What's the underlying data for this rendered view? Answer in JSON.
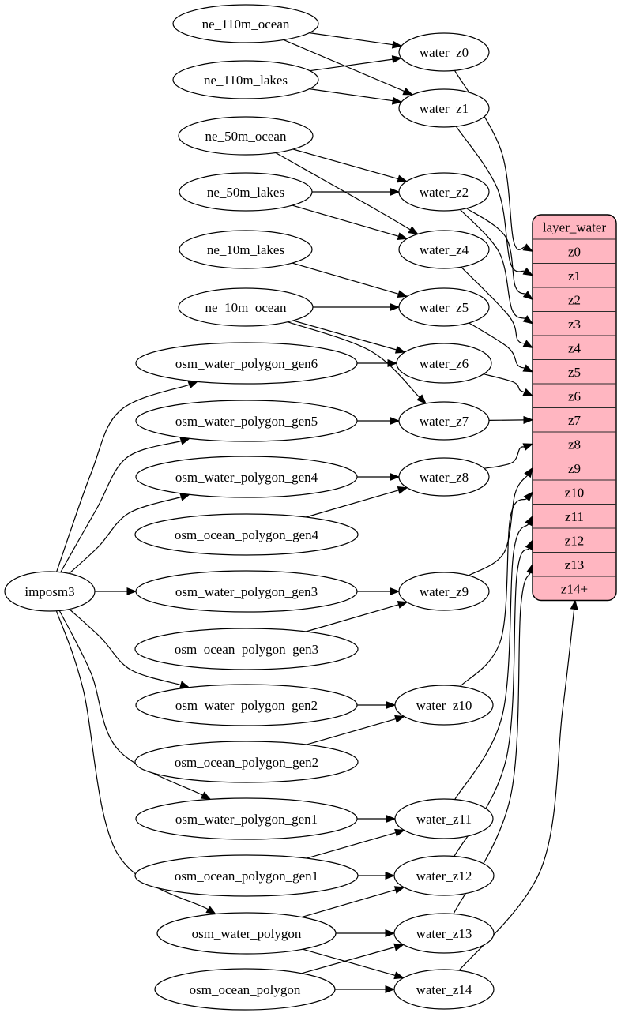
{
  "diagram": {
    "background": "#ffffff",
    "colors": {
      "node_fill": "#ffffff",
      "stroke": "#000000",
      "text": "#000000",
      "table_fill": "#ffb6c1"
    },
    "table": {
      "title": "layer_water",
      "rows": [
        "z0",
        "z1",
        "z2",
        "z3",
        "z4",
        "z5",
        "z6",
        "z7",
        "z8",
        "z9",
        "z10",
        "z11",
        "z12",
        "z13",
        "z14+"
      ]
    },
    "nodes": [
      {
        "id": "imposm3",
        "label": "imposm3"
      },
      {
        "id": "ne_110m_ocean",
        "label": "ne_110m_ocean"
      },
      {
        "id": "ne_110m_lakes",
        "label": "ne_110m_lakes"
      },
      {
        "id": "ne_50m_ocean",
        "label": "ne_50m_ocean"
      },
      {
        "id": "ne_50m_lakes",
        "label": "ne_50m_lakes"
      },
      {
        "id": "ne_10m_lakes",
        "label": "ne_10m_lakes"
      },
      {
        "id": "ne_10m_ocean",
        "label": "ne_10m_ocean"
      },
      {
        "id": "osm_water_polygon_gen6",
        "label": "osm_water_polygon_gen6"
      },
      {
        "id": "osm_water_polygon_gen5",
        "label": "osm_water_polygon_gen5"
      },
      {
        "id": "osm_water_polygon_gen4",
        "label": "osm_water_polygon_gen4"
      },
      {
        "id": "osm_ocean_polygon_gen4",
        "label": "osm_ocean_polygon_gen4"
      },
      {
        "id": "osm_water_polygon_gen3",
        "label": "osm_water_polygon_gen3"
      },
      {
        "id": "osm_ocean_polygon_gen3",
        "label": "osm_ocean_polygon_gen3"
      },
      {
        "id": "osm_water_polygon_gen2",
        "label": "osm_water_polygon_gen2"
      },
      {
        "id": "osm_ocean_polygon_gen2",
        "label": "osm_ocean_polygon_gen2"
      },
      {
        "id": "osm_water_polygon_gen1",
        "label": "osm_water_polygon_gen1"
      },
      {
        "id": "osm_ocean_polygon_gen1",
        "label": "osm_ocean_polygon_gen1"
      },
      {
        "id": "osm_water_polygon",
        "label": "osm_water_polygon"
      },
      {
        "id": "osm_ocean_polygon",
        "label": "osm_ocean_polygon"
      },
      {
        "id": "water_z0",
        "label": "water_z0"
      },
      {
        "id": "water_z1",
        "label": "water_z1"
      },
      {
        "id": "water_z2",
        "label": "water_z2"
      },
      {
        "id": "water_z4",
        "label": "water_z4"
      },
      {
        "id": "water_z5",
        "label": "water_z5"
      },
      {
        "id": "water_z6",
        "label": "water_z6"
      },
      {
        "id": "water_z7",
        "label": "water_z7"
      },
      {
        "id": "water_z8",
        "label": "water_z8"
      },
      {
        "id": "water_z9",
        "label": "water_z9"
      },
      {
        "id": "water_z10",
        "label": "water_z10"
      },
      {
        "id": "water_z11",
        "label": "water_z11"
      },
      {
        "id": "water_z12",
        "label": "water_z12"
      },
      {
        "id": "water_z13",
        "label": "water_z13"
      },
      {
        "id": "water_z14",
        "label": "water_z14"
      }
    ],
    "edges": [
      {
        "from": "ne_110m_ocean",
        "to": "water_z0"
      },
      {
        "from": "ne_110m_ocean",
        "to": "water_z1"
      },
      {
        "from": "ne_110m_lakes",
        "to": "water_z0"
      },
      {
        "from": "ne_110m_lakes",
        "to": "water_z1"
      },
      {
        "from": "ne_50m_ocean",
        "to": "water_z2"
      },
      {
        "from": "ne_50m_ocean",
        "to": "water_z4"
      },
      {
        "from": "ne_50m_lakes",
        "to": "water_z2"
      },
      {
        "from": "ne_50m_lakes",
        "to": "water_z4"
      },
      {
        "from": "ne_10m_lakes",
        "to": "water_z5"
      },
      {
        "from": "ne_10m_ocean",
        "to": "water_z5"
      },
      {
        "from": "ne_10m_ocean",
        "to": "water_z6"
      },
      {
        "from": "ne_10m_ocean",
        "to": "water_z7"
      },
      {
        "from": "osm_water_polygon_gen6",
        "to": "water_z6"
      },
      {
        "from": "osm_water_polygon_gen5",
        "to": "water_z7"
      },
      {
        "from": "osm_water_polygon_gen4",
        "to": "water_z8"
      },
      {
        "from": "osm_ocean_polygon_gen4",
        "to": "water_z8"
      },
      {
        "from": "osm_water_polygon_gen3",
        "to": "water_z9"
      },
      {
        "from": "osm_ocean_polygon_gen3",
        "to": "water_z9"
      },
      {
        "from": "osm_water_polygon_gen2",
        "to": "water_z10"
      },
      {
        "from": "osm_ocean_polygon_gen2",
        "to": "water_z10"
      },
      {
        "from": "osm_water_polygon_gen1",
        "to": "water_z11"
      },
      {
        "from": "osm_ocean_polygon_gen1",
        "to": "water_z11"
      },
      {
        "from": "osm_ocean_polygon_gen1",
        "to": "water_z12"
      },
      {
        "from": "osm_water_polygon",
        "to": "water_z12"
      },
      {
        "from": "osm_water_polygon",
        "to": "water_z13"
      },
      {
        "from": "osm_water_polygon",
        "to": "water_z14"
      },
      {
        "from": "osm_ocean_polygon",
        "to": "water_z13"
      },
      {
        "from": "osm_ocean_polygon",
        "to": "water_z14"
      },
      {
        "from": "imposm3",
        "to": "osm_water_polygon_gen6"
      },
      {
        "from": "imposm3",
        "to": "osm_water_polygon_gen5"
      },
      {
        "from": "imposm3",
        "to": "osm_water_polygon_gen4"
      },
      {
        "from": "imposm3",
        "to": "osm_water_polygon_gen3"
      },
      {
        "from": "imposm3",
        "to": "osm_water_polygon_gen2"
      },
      {
        "from": "imposm3",
        "to": "osm_water_polygon_gen1"
      },
      {
        "from": "imposm3",
        "to": "osm_water_polygon"
      },
      {
        "from": "water_z0",
        "to": "row:z0"
      },
      {
        "from": "water_z1",
        "to": "row:z1"
      },
      {
        "from": "water_z2",
        "to": "row:z2"
      },
      {
        "from": "water_z2",
        "to": "row:z3"
      },
      {
        "from": "water_z4",
        "to": "row:z4"
      },
      {
        "from": "water_z5",
        "to": "row:z5"
      },
      {
        "from": "water_z6",
        "to": "row:z6"
      },
      {
        "from": "water_z7",
        "to": "row:z7"
      },
      {
        "from": "water_z8",
        "to": "row:z8"
      },
      {
        "from": "water_z9",
        "to": "row:z9"
      },
      {
        "from": "water_z10",
        "to": "row:z10"
      },
      {
        "from": "water_z11",
        "to": "row:z11"
      },
      {
        "from": "water_z12",
        "to": "row:z12"
      },
      {
        "from": "water_z13",
        "to": "row:z13"
      },
      {
        "from": "water_z14",
        "to": "row:z14+"
      }
    ]
  }
}
